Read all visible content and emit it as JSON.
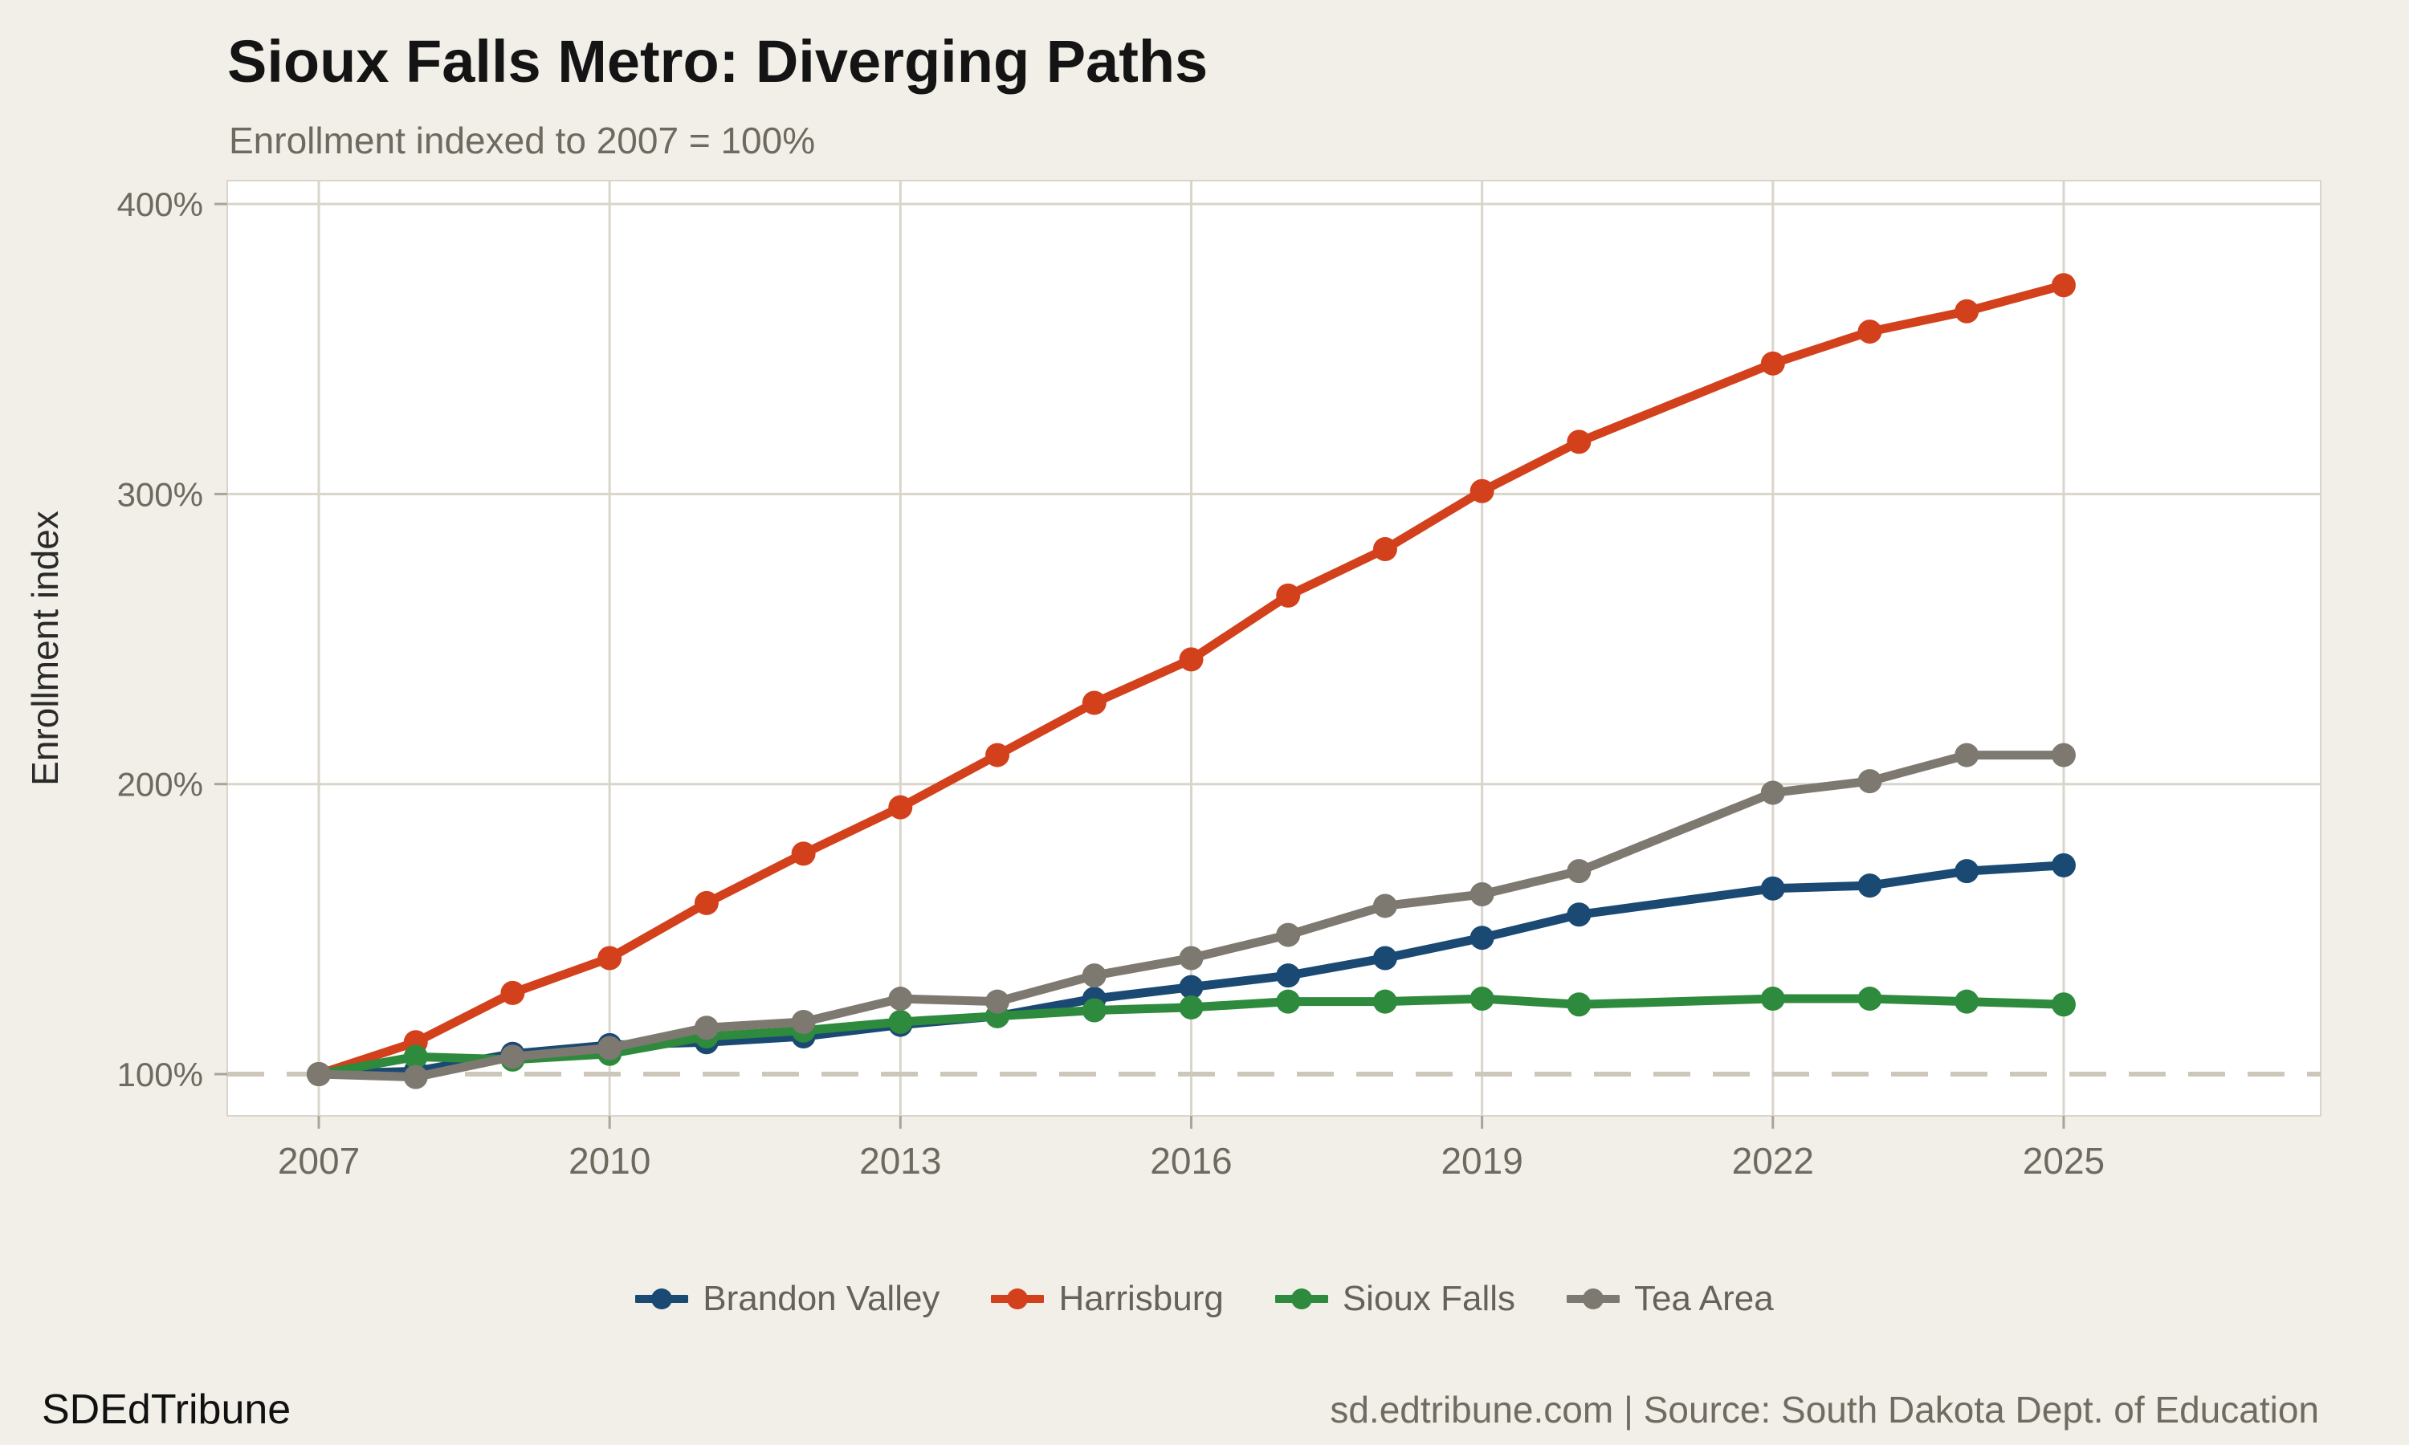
{
  "header": {
    "title": "Sioux Falls Metro: Diverging Paths",
    "subtitle": "Enrollment indexed to 2007 = 100%"
  },
  "footer": {
    "brand": "SDEdTribune",
    "attribution": "sd.edtribune.com | Source: South Dakota Dept. of Education"
  },
  "colors": {
    "page_background": "#f2efe8",
    "panel_background": "#ffffff",
    "gridline": "#d9d5ca",
    "reference_dash": "#cdc7ba",
    "tick_mark": "#a9a49a",
    "axis_text": "#6f6a60",
    "axis_title_text": "#2a2a2a"
  },
  "chart_data": {
    "type": "line",
    "title": "Sioux Falls Metro: Diverging Paths",
    "subtitle": "Enrollment indexed to 2007 = 100%",
    "xlabel": "",
    "ylabel": "Enrollment index",
    "x": [
      2007,
      2008,
      2009,
      2010,
      2011,
      2012,
      2013,
      2014,
      2015,
      2016,
      2017,
      2018,
      2019,
      2020,
      2022,
      2023,
      2024,
      2025
    ],
    "series": [
      {
        "name": "Brandon Valley",
        "color": "#1a4a73",
        "values": [
          100,
          101,
          107,
          110,
          111,
          113,
          117,
          120,
          126,
          130,
          134,
          140,
          147,
          155,
          164,
          165,
          170,
          172
        ]
      },
      {
        "name": "Harrisburg",
        "color": "#d2411c",
        "values": [
          100,
          111,
          128,
          140,
          159,
          176,
          192,
          210,
          228,
          243,
          265,
          281,
          301,
          318,
          345,
          356,
          363,
          372
        ]
      },
      {
        "name": "Sioux Falls",
        "color": "#2e8a3c",
        "values": [
          100,
          106,
          105,
          107,
          113,
          115,
          118,
          120,
          122,
          123,
          125,
          125,
          126,
          124,
          126,
          126,
          125,
          124
        ]
      },
      {
        "name": "Tea Area",
        "color": "#7e7970",
        "values": [
          100,
          99,
          106,
          109,
          116,
          118,
          126,
          125,
          134,
          140,
          148,
          158,
          162,
          170,
          197,
          201,
          210,
          210
        ]
      }
    ],
    "axis": {
      "yticks": [
        100,
        200,
        300,
        400
      ],
      "ytick_labels": [
        "100%",
        "200%",
        "300%",
        "400%"
      ],
      "xticks": [
        2007,
        2010,
        2013,
        2016,
        2019,
        2022,
        2025
      ],
      "xtick_labels": [
        "2007",
        "2010",
        "2013",
        "2016",
        "2019",
        "2022",
        "2025"
      ],
      "ylim": [
        86,
        408
      ],
      "xlim": [
        2006.1,
        2027.7
      ]
    },
    "reference_line": 100,
    "grid": true,
    "legend_position": "bottom"
  }
}
